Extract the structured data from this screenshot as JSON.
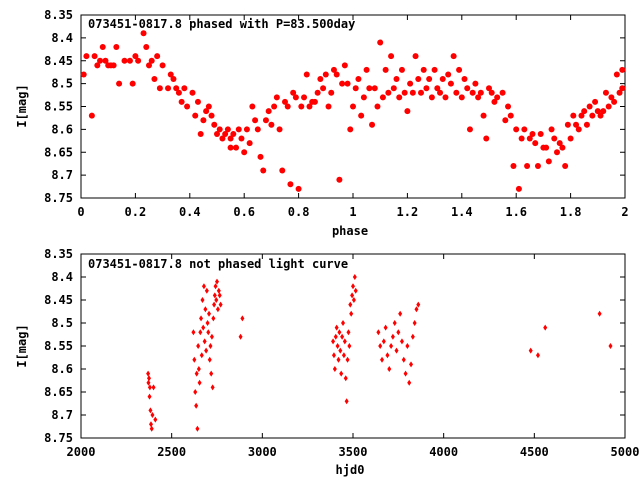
{
  "colors": {
    "marker": "#ff0000",
    "axis": "#000000",
    "background": "#ffffff"
  },
  "chart_data": [
    {
      "type": "scatter",
      "title": "073451-0817.8 phased with P=83.500day",
      "xlabel": "phase",
      "ylabel": "I[mag]",
      "xlim": [
        0,
        2
      ],
      "ylim": [
        8.35,
        8.75
      ],
      "y_inverted": true,
      "xticks": [
        0,
        0.2,
        0.4,
        0.6,
        0.8,
        1,
        1.2,
        1.4,
        1.6,
        1.8,
        2
      ],
      "xtick_labels": [
        "0",
        "0.2",
        "0.4",
        "0.6",
        "0.8",
        "1",
        "1.2",
        "1.4",
        "1.6",
        "1.8",
        "2"
      ],
      "yticks": [
        8.35,
        8.4,
        8.45,
        8.5,
        8.55,
        8.6,
        8.65,
        8.7,
        8.75
      ],
      "ytick_labels": [
        "8.35",
        "8.4",
        "8.45",
        "8.5",
        "8.55",
        "8.6",
        "8.65",
        "8.7",
        "8.75"
      ],
      "grid": false,
      "marker": "filled-circle",
      "points": [
        [
          0.01,
          8.48
        ],
        [
          0.02,
          8.44
        ],
        [
          0.04,
          8.57
        ],
        [
          0.05,
          8.44
        ],
        [
          0.06,
          8.46
        ],
        [
          0.07,
          8.45
        ],
        [
          0.08,
          8.42
        ],
        [
          0.09,
          8.45
        ],
        [
          0.1,
          8.46
        ],
        [
          0.11,
          8.46
        ],
        [
          0.12,
          8.46
        ],
        [
          0.13,
          8.42
        ],
        [
          0.14,
          8.5
        ],
        [
          0.16,
          8.45
        ],
        [
          0.18,
          8.45
        ],
        [
          0.19,
          8.5
        ],
        [
          0.2,
          8.44
        ],
        [
          0.21,
          8.45
        ],
        [
          0.23,
          8.39
        ],
        [
          0.24,
          8.42
        ],
        [
          0.25,
          8.46
        ],
        [
          0.26,
          8.45
        ],
        [
          0.27,
          8.49
        ],
        [
          0.28,
          8.44
        ],
        [
          0.29,
          8.51
        ],
        [
          0.3,
          8.46
        ],
        [
          0.32,
          8.51
        ],
        [
          0.33,
          8.48
        ],
        [
          0.34,
          8.49
        ],
        [
          0.35,
          8.51
        ],
        [
          0.36,
          8.52
        ],
        [
          0.37,
          8.54
        ],
        [
          0.38,
          8.51
        ],
        [
          0.39,
          8.55
        ],
        [
          0.41,
          8.52
        ],
        [
          0.42,
          8.57
        ],
        [
          0.43,
          8.54
        ],
        [
          0.44,
          8.61
        ],
        [
          0.45,
          8.58
        ],
        [
          0.46,
          8.56
        ],
        [
          0.47,
          8.55
        ],
        [
          0.48,
          8.57
        ],
        [
          0.49,
          8.59
        ],
        [
          0.5,
          8.61
        ],
        [
          0.51,
          8.6
        ],
        [
          0.52,
          8.62
        ],
        [
          0.53,
          8.61
        ],
        [
          0.54,
          8.6
        ],
        [
          0.55,
          8.62
        ],
        [
          0.55,
          8.64
        ],
        [
          0.56,
          8.61
        ],
        [
          0.57,
          8.64
        ],
        [
          0.58,
          8.6
        ],
        [
          0.59,
          8.62
        ],
        [
          0.6,
          8.65
        ],
        [
          0.61,
          8.6
        ],
        [
          0.62,
          8.63
        ],
        [
          0.63,
          8.55
        ],
        [
          0.64,
          8.58
        ],
        [
          0.65,
          8.6
        ],
        [
          0.66,
          8.66
        ],
        [
          0.67,
          8.69
        ],
        [
          0.68,
          8.58
        ],
        [
          0.69,
          8.56
        ],
        [
          0.7,
          8.59
        ],
        [
          0.71,
          8.55
        ],
        [
          0.72,
          8.53
        ],
        [
          0.73,
          8.6
        ],
        [
          0.74,
          8.69
        ],
        [
          0.75,
          8.54
        ],
        [
          0.76,
          8.55
        ],
        [
          0.77,
          8.72
        ],
        [
          0.78,
          8.52
        ],
        [
          0.79,
          8.53
        ],
        [
          0.8,
          8.73
        ],
        [
          0.81,
          8.55
        ],
        [
          0.82,
          8.53
        ],
        [
          0.83,
          8.48
        ],
        [
          0.84,
          8.55
        ],
        [
          0.85,
          8.54
        ],
        [
          0.86,
          8.54
        ],
        [
          0.87,
          8.52
        ],
        [
          0.88,
          8.49
        ],
        [
          0.89,
          8.51
        ],
        [
          0.9,
          8.48
        ],
        [
          0.91,
          8.55
        ],
        [
          0.92,
          8.52
        ],
        [
          0.93,
          8.47
        ],
        [
          0.94,
          8.48
        ],
        [
          0.95,
          8.71
        ],
        [
          0.96,
          8.5
        ],
        [
          0.97,
          8.46
        ],
        [
          0.98,
          8.5
        ],
        [
          0.99,
          8.6
        ],
        [
          1.0,
          8.55
        ],
        [
          1.01,
          8.51
        ],
        [
          1.02,
          8.49
        ],
        [
          1.03,
          8.57
        ],
        [
          1.04,
          8.53
        ],
        [
          1.05,
          8.47
        ],
        [
          1.06,
          8.51
        ],
        [
          1.07,
          8.59
        ],
        [
          1.08,
          8.51
        ],
        [
          1.09,
          8.55
        ],
        [
          1.1,
          8.41
        ],
        [
          1.11,
          8.53
        ],
        [
          1.12,
          8.47
        ],
        [
          1.13,
          8.52
        ],
        [
          1.14,
          8.44
        ],
        [
          1.15,
          8.51
        ],
        [
          1.16,
          8.49
        ],
        [
          1.17,
          8.53
        ],
        [
          1.18,
          8.47
        ],
        [
          1.19,
          8.52
        ],
        [
          1.2,
          8.56
        ],
        [
          1.21,
          8.5
        ],
        [
          1.22,
          8.52
        ],
        [
          1.23,
          8.44
        ],
        [
          1.24,
          8.49
        ],
        [
          1.25,
          8.52
        ],
        [
          1.26,
          8.47
        ],
        [
          1.27,
          8.51
        ],
        [
          1.28,
          8.49
        ],
        [
          1.29,
          8.53
        ],
        [
          1.3,
          8.47
        ],
        [
          1.31,
          8.51
        ],
        [
          1.32,
          8.52
        ],
        [
          1.33,
          8.49
        ],
        [
          1.34,
          8.53
        ],
        [
          1.35,
          8.48
        ],
        [
          1.36,
          8.5
        ],
        [
          1.37,
          8.44
        ],
        [
          1.38,
          8.52
        ],
        [
          1.39,
          8.47
        ],
        [
          1.4,
          8.53
        ],
        [
          1.41,
          8.49
        ],
        [
          1.42,
          8.51
        ],
        [
          1.43,
          8.6
        ],
        [
          1.44,
          8.52
        ],
        [
          1.45,
          8.5
        ],
        [
          1.46,
          8.53
        ],
        [
          1.47,
          8.52
        ],
        [
          1.48,
          8.57
        ],
        [
          1.49,
          8.62
        ],
        [
          1.5,
          8.51
        ],
        [
          1.51,
          8.52
        ],
        [
          1.52,
          8.54
        ],
        [
          1.53,
          8.53
        ],
        [
          1.55,
          8.52
        ],
        [
          1.56,
          8.58
        ],
        [
          1.57,
          8.55
        ],
        [
          1.58,
          8.57
        ],
        [
          1.59,
          8.68
        ],
        [
          1.6,
          8.6
        ],
        [
          1.61,
          8.73
        ],
        [
          1.62,
          8.62
        ],
        [
          1.63,
          8.6
        ],
        [
          1.64,
          8.68
        ],
        [
          1.65,
          8.62
        ],
        [
          1.66,
          8.61
        ],
        [
          1.67,
          8.63
        ],
        [
          1.68,
          8.68
        ],
        [
          1.69,
          8.61
        ],
        [
          1.7,
          8.64
        ],
        [
          1.71,
          8.64
        ],
        [
          1.72,
          8.67
        ],
        [
          1.73,
          8.6
        ],
        [
          1.74,
          8.62
        ],
        [
          1.75,
          8.65
        ],
        [
          1.76,
          8.63
        ],
        [
          1.77,
          8.64
        ],
        [
          1.78,
          8.68
        ],
        [
          1.79,
          8.59
        ],
        [
          1.8,
          8.62
        ],
        [
          1.81,
          8.57
        ],
        [
          1.82,
          8.59
        ],
        [
          1.83,
          8.6
        ],
        [
          1.84,
          8.57
        ],
        [
          1.85,
          8.56
        ],
        [
          1.86,
          8.59
        ],
        [
          1.87,
          8.55
        ],
        [
          1.88,
          8.57
        ],
        [
          1.89,
          8.54
        ],
        [
          1.9,
          8.56
        ],
        [
          1.91,
          8.57
        ],
        [
          1.92,
          8.56
        ],
        [
          1.93,
          8.52
        ],
        [
          1.94,
          8.55
        ],
        [
          1.95,
          8.53
        ],
        [
          1.96,
          8.54
        ],
        [
          1.97,
          8.48
        ],
        [
          1.98,
          8.52
        ],
        [
          1.99,
          8.47
        ],
        [
          1.99,
          8.51
        ]
      ]
    },
    {
      "type": "scatter",
      "title": "073451-0817.8 not phased light curve",
      "xlabel": "hjd0",
      "ylabel": "I[mag]",
      "xlim": [
        2000,
        5000
      ],
      "ylim": [
        8.35,
        8.75
      ],
      "y_inverted": true,
      "xticks": [
        2000,
        2500,
        3000,
        3500,
        4000,
        4500,
        5000
      ],
      "xtick_labels": [
        "2000",
        "2500",
        "3000",
        "3500",
        "4000",
        "4500",
        "5000"
      ],
      "yticks": [
        8.35,
        8.4,
        8.45,
        8.5,
        8.55,
        8.6,
        8.65,
        8.7,
        8.75
      ],
      "ytick_labels": [
        "8.35",
        "8.4",
        "8.45",
        "8.5",
        "8.55",
        "8.6",
        "8.65",
        "8.7",
        "8.75"
      ],
      "grid": false,
      "marker": "filled-diamond",
      "points": [
        [
          2370,
          8.61
        ],
        [
          2372,
          8.63
        ],
        [
          2375,
          8.62
        ],
        [
          2378,
          8.66
        ],
        [
          2380,
          8.64
        ],
        [
          2383,
          8.69
        ],
        [
          2386,
          8.72
        ],
        [
          2390,
          8.73
        ],
        [
          2394,
          8.7
        ],
        [
          2400,
          8.64
        ],
        [
          2410,
          8.71
        ],
        [
          2620,
          8.52
        ],
        [
          2625,
          8.58
        ],
        [
          2630,
          8.65
        ],
        [
          2635,
          8.68
        ],
        [
          2638,
          8.61
        ],
        [
          2642,
          8.73
        ],
        [
          2646,
          8.55
        ],
        [
          2650,
          8.6
        ],
        [
          2654,
          8.63
        ],
        [
          2658,
          8.52
        ],
        [
          2662,
          8.49
        ],
        [
          2666,
          8.57
        ],
        [
          2670,
          8.45
        ],
        [
          2674,
          8.51
        ],
        [
          2678,
          8.42
        ],
        [
          2682,
          8.54
        ],
        [
          2686,
          8.47
        ],
        [
          2690,
          8.56
        ],
        [
          2694,
          8.43
        ],
        [
          2698,
          8.5
        ],
        [
          2702,
          8.52
        ],
        [
          2706,
          8.48
        ],
        [
          2710,
          8.58
        ],
        [
          2714,
          8.55
        ],
        [
          2718,
          8.61
        ],
        [
          2722,
          8.53
        ],
        [
          2726,
          8.64
        ],
        [
          2730,
          8.49
        ],
        [
          2734,
          8.46
        ],
        [
          2738,
          8.44
        ],
        [
          2742,
          8.42
        ],
        [
          2746,
          8.45
        ],
        [
          2750,
          8.41
        ],
        [
          2755,
          8.47
        ],
        [
          2760,
          8.43
        ],
        [
          2765,
          8.44
        ],
        [
          2770,
          8.46
        ],
        [
          2880,
          8.53
        ],
        [
          2890,
          8.49
        ],
        [
          3390,
          8.54
        ],
        [
          3395,
          8.57
        ],
        [
          3400,
          8.6
        ],
        [
          3405,
          8.53
        ],
        [
          3410,
          8.51
        ],
        [
          3415,
          8.55
        ],
        [
          3420,
          8.58
        ],
        [
          3425,
          8.52
        ],
        [
          3430,
          8.56
        ],
        [
          3435,
          8.61
        ],
        [
          3440,
          8.53
        ],
        [
          3445,
          8.5
        ],
        [
          3450,
          8.57
        ],
        [
          3455,
          8.54
        ],
        [
          3460,
          8.62
        ],
        [
          3465,
          8.67
        ],
        [
          3470,
          8.58
        ],
        [
          3475,
          8.52
        ],
        [
          3480,
          8.55
        ],
        [
          3485,
          8.46
        ],
        [
          3490,
          8.48
        ],
        [
          3495,
          8.44
        ],
        [
          3500,
          8.42
        ],
        [
          3505,
          8.45
        ],
        [
          3510,
          8.4
        ],
        [
          3515,
          8.43
        ],
        [
          3640,
          8.52
        ],
        [
          3650,
          8.55
        ],
        [
          3660,
          8.58
        ],
        [
          3670,
          8.54
        ],
        [
          3680,
          8.51
        ],
        [
          3690,
          8.57
        ],
        [
          3700,
          8.6
        ],
        [
          3710,
          8.55
        ],
        [
          3720,
          8.53
        ],
        [
          3730,
          8.5
        ],
        [
          3740,
          8.56
        ],
        [
          3750,
          8.52
        ],
        [
          3760,
          8.48
        ],
        [
          3770,
          8.54
        ],
        [
          3780,
          8.58
        ],
        [
          3790,
          8.61
        ],
        [
          3800,
          8.55
        ],
        [
          3810,
          8.63
        ],
        [
          3820,
          8.59
        ],
        [
          3830,
          8.53
        ],
        [
          3840,
          8.5
        ],
        [
          3850,
          8.47
        ],
        [
          3860,
          8.46
        ],
        [
          4480,
          8.56
        ],
        [
          4520,
          8.57
        ],
        [
          4560,
          8.51
        ],
        [
          4860,
          8.48
        ],
        [
          4920,
          8.55
        ]
      ]
    }
  ]
}
